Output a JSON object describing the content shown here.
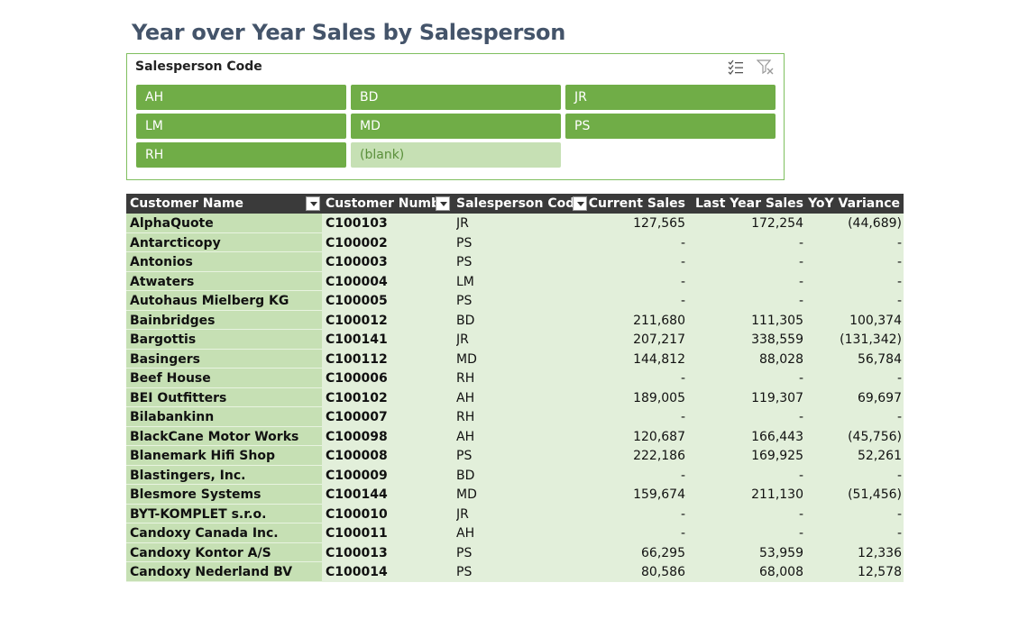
{
  "title": "Year over Year Sales by Salesperson",
  "slicer": {
    "header": "Salesperson Code",
    "icons": [
      "multi-select-icon",
      "clear-filter-icon"
    ],
    "items": [
      {
        "label": "AH",
        "selected": true
      },
      {
        "label": "BD",
        "selected": true
      },
      {
        "label": "JR",
        "selected": true
      },
      {
        "label": "LM",
        "selected": true
      },
      {
        "label": "MD",
        "selected": true
      },
      {
        "label": "PS",
        "selected": true
      },
      {
        "label": "RH",
        "selected": true
      },
      {
        "label": "(blank)",
        "selected": false
      }
    ]
  },
  "table": {
    "headers": [
      "Customer Name",
      "Customer Numbe",
      "Salesperson Code",
      "Current Sales",
      "Last Year Sales",
      "YoY Variance"
    ],
    "rows": [
      [
        "AlphaQuote",
        "C100103",
        "JR",
        "127,565",
        "172,254",
        "(44,689)"
      ],
      [
        "Antarcticopy",
        "C100002",
        "PS",
        "-",
        "-",
        "-"
      ],
      [
        "Antonios",
        "C100003",
        "PS",
        "-",
        "-",
        "-"
      ],
      [
        "Atwaters",
        "C100004",
        "LM",
        "-",
        "-",
        "-"
      ],
      [
        "Autohaus Mielberg KG",
        "C100005",
        "PS",
        "-",
        "-",
        "-"
      ],
      [
        "Bainbridges",
        "C100012",
        "BD",
        "211,680",
        "111,305",
        "100,374"
      ],
      [
        "Bargottis",
        "C100141",
        "JR",
        "207,217",
        "338,559",
        "(131,342)"
      ],
      [
        "Basingers",
        "C100112",
        "MD",
        "144,812",
        "88,028",
        "56,784"
      ],
      [
        "Beef House",
        "C100006",
        "RH",
        "-",
        "-",
        "-"
      ],
      [
        "BEI Outfitters",
        "C100102",
        "AH",
        "189,005",
        "119,307",
        "69,697"
      ],
      [
        "Bilabankinn",
        "C100007",
        "RH",
        "-",
        "-",
        "-"
      ],
      [
        "BlackCane Motor Works",
        "C100098",
        "AH",
        "120,687",
        "166,443",
        "(45,756)"
      ],
      [
        "Blanemark Hifi Shop",
        "C100008",
        "PS",
        "222,186",
        "169,925",
        "52,261"
      ],
      [
        "Blastingers, Inc.",
        "C100009",
        "BD",
        "-",
        "-",
        "-"
      ],
      [
        "Blesmore Systems",
        "C100144",
        "MD",
        "159,674",
        "211,130",
        "(51,456)"
      ],
      [
        "BYT-KOMPLET s.r.o.",
        "C100010",
        "JR",
        "-",
        "-",
        "-"
      ],
      [
        "Candoxy Canada Inc.",
        "C100011",
        "AH",
        "-",
        "-",
        "-"
      ],
      [
        "Candoxy Kontor A/S",
        "C100013",
        "PS",
        "66,295",
        "53,959",
        "12,336"
      ],
      [
        "Candoxy Nederland BV",
        "C100014",
        "PS",
        "80,586",
        "68,008",
        "12,578"
      ]
    ]
  }
}
